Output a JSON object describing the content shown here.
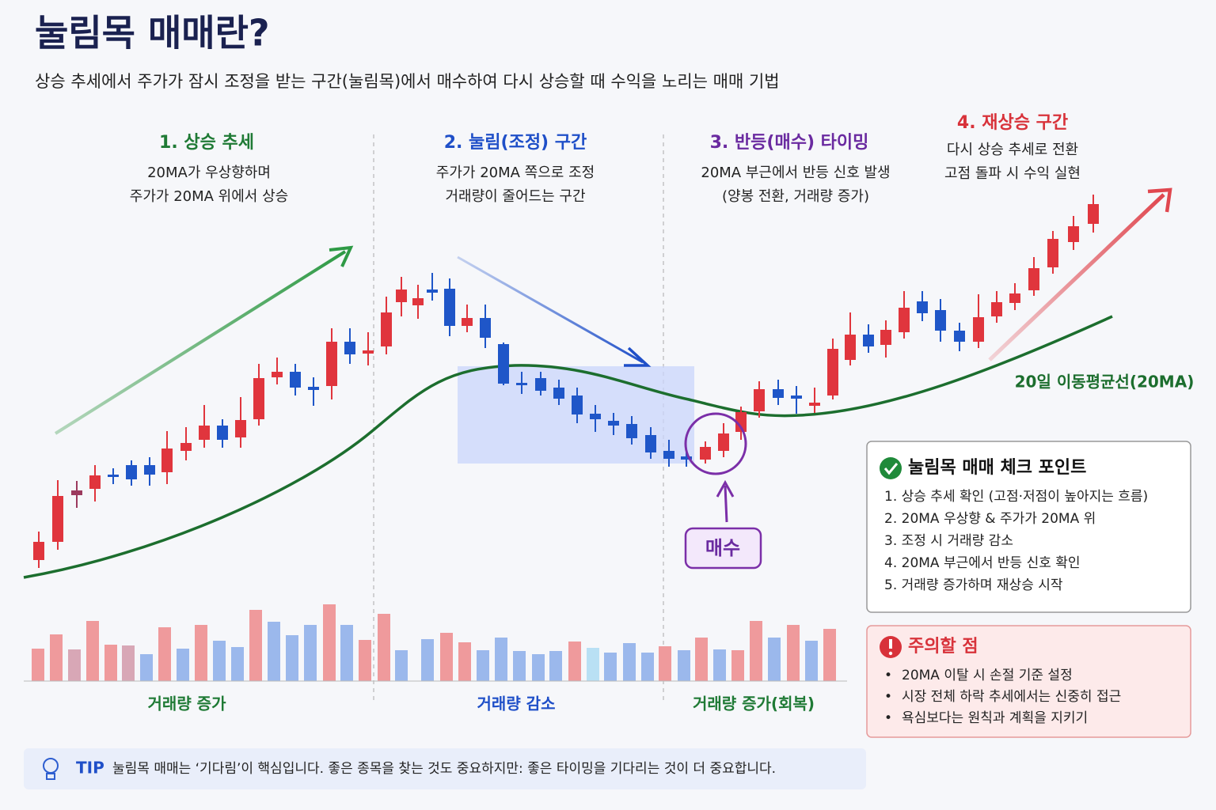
{
  "title": "눌림목 매매란?",
  "subtitle": "상승 추세에서 주가가 잠시 조정을 받는 구간(눌림목)에서 매수하여 다시 상승할 때 수익을 노리는 매매 기법",
  "phases": [
    {
      "title": "1. 상승 추세",
      "lines": [
        "20MA가 우상향하며",
        "주가가 20MA 위에서 상승"
      ]
    },
    {
      "title": "2. 눌림(조정) 구간",
      "lines": [
        "주가가 20MA 쪽으로 조정",
        "거래량이 줄어드는 구간"
      ]
    },
    {
      "title": "3. 반등(매수) 타이밍",
      "lines": [
        "20MA 부근에서 반등 신호 발생",
        "(양봉 전환, 거래량 증가)"
      ]
    },
    {
      "title": "4. 재상승 구간",
      "lines": [
        "다시 상승 추세로 전환",
        "고점 돌파 시 수익 실현"
      ]
    }
  ],
  "ma_label": "20일 이동평균선(20MA)",
  "buy_label": "매수",
  "volume_labels": [
    "거래량 증가",
    "거래량 감소",
    "거래량 증가(회복)"
  ],
  "checklist": {
    "title": "눌림목 매매 체크 포인트",
    "items": [
      "1. 상승 추세 확인 (고점·저점이 높아지는 흐름)",
      "2. 20MA 우상향 & 주가가 20MA 위",
      "3. 조정 시 거래량 감소",
      "4. 20MA 부근에서 반등 신호 확인",
      "5. 거래량 증가하며 재상승 시작"
    ]
  },
  "caution": {
    "title": "주의할 점",
    "items": [
      "20MA 이탈 시 손절 기준 설정",
      "시장 전체 하락 추세에서는 신중히 접근",
      "욕심보다는 원칙과 계획을 지키기"
    ]
  },
  "tip": {
    "label": "TIP",
    "text": "눌림목 매매는 ‘기다림’이 핵심입니다. 좋은 종목을 찾는 것도 중요하지만: 좋은 타이밍을 기다리는 것이 더 중요합니다."
  }
}
